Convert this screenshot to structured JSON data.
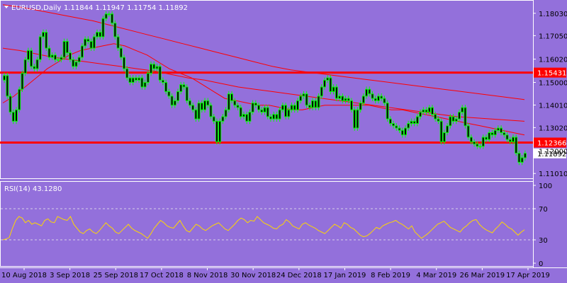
{
  "header": {
    "symbol_tf": "EURUSD,Daily",
    "ohlc": "1.11844 1.11947 1.11754 1.11892"
  },
  "colors": {
    "background": "#9370DB",
    "candle": "#00FF00",
    "ma": "#FF0000",
    "hline": "#FF0000",
    "rsi": "#FFD700",
    "frame": "#FFFFFF",
    "label_bg": "#FF0000",
    "price_box_bg": "#FFFFFF"
  },
  "price_axis": {
    "ticks": [
      "1.18030",
      "1.17050",
      "1.16020",
      "1.15000",
      "1.14010",
      "1.13020",
      "1.12000",
      "1.11010"
    ]
  },
  "h_levels": [
    {
      "value": 1.15431,
      "label": "1.15431"
    },
    {
      "value": 1.12366,
      "label": "1.12366"
    }
  ],
  "current_price": {
    "value": 1.11892,
    "label": "1.11892"
  },
  "rsi_panel": {
    "title": "RSI(14) 43.1280",
    "ticks": [
      "100",
      "70",
      "30",
      "0"
    ],
    "levels": [
      70,
      30
    ]
  },
  "time_axis": {
    "labels": [
      "10 Aug 2018",
      "3 Sep 2018",
      "25 Sep 2018",
      "17 Oct 2018",
      "8 Nov 2018",
      "30 Nov 2018",
      "24 Dec 2018",
      "17 Jan 2019",
      "8 Feb 2019",
      "4 Mar 2019",
      "26 Mar 2019",
      "17 Apr 2019"
    ]
  },
  "chart_data": {
    "type": "candlestick",
    "symbol": "EURUSD",
    "timeframe": "Daily",
    "ylim": [
      1.108,
      1.1855
    ],
    "candles_close": [
      1.153,
      1.144,
      1.137,
      1.133,
      1.138,
      1.147,
      1.154,
      1.16,
      1.164,
      1.157,
      1.156,
      1.16,
      1.17,
      1.172,
      1.165,
      1.161,
      1.162,
      1.16,
      1.16,
      1.161,
      1.168,
      1.163,
      1.16,
      1.157,
      1.159,
      1.161,
      1.166,
      1.169,
      1.168,
      1.165,
      1.17,
      1.172,
      1.17,
      1.178,
      1.18,
      1.18,
      1.176,
      1.17,
      1.165,
      1.161,
      1.156,
      1.152,
      1.15,
      1.152,
      1.151,
      1.152,
      1.148,
      1.15,
      1.154,
      1.158,
      1.156,
      1.157,
      1.151,
      1.15,
      1.146,
      1.144,
      1.14,
      1.142,
      1.146,
      1.149,
      1.148,
      1.142,
      1.14,
      1.138,
      1.134,
      1.141,
      1.138,
      1.142,
      1.14,
      1.135,
      1.133,
      1.124,
      1.133,
      1.135,
      1.138,
      1.145,
      1.142,
      1.14,
      1.139,
      1.135,
      1.136,
      1.133,
      1.137,
      1.141,
      1.14,
      1.138,
      1.137,
      1.139,
      1.135,
      1.134,
      1.136,
      1.134,
      1.138,
      1.14,
      1.135,
      1.138,
      1.14,
      1.138,
      1.142,
      1.144,
      1.145,
      1.14,
      1.139,
      1.142,
      1.139,
      1.144,
      1.148,
      1.151,
      1.152,
      1.146,
      1.148,
      1.143,
      1.144,
      1.142,
      1.143,
      1.142,
      1.138,
      1.13,
      1.138,
      1.141,
      1.144,
      1.147,
      1.145,
      1.143,
      1.142,
      1.144,
      1.143,
      1.141,
      1.134,
      1.132,
      1.131,
      1.13,
      1.129,
      1.127,
      1.13,
      1.132,
      1.133,
      1.132,
      1.135,
      1.137,
      1.138,
      1.137,
      1.139,
      1.136,
      1.134,
      1.133,
      1.124,
      1.128,
      1.131,
      1.135,
      1.133,
      1.134,
      1.137,
      1.139,
      1.131,
      1.126,
      1.124,
      1.123,
      1.122,
      1.122,
      1.126,
      1.125,
      1.128,
      1.127,
      1.129,
      1.13,
      1.128,
      1.127,
      1.125,
      1.124,
      1.126,
      1.119,
      1.115,
      1.117,
      1.119
    ],
    "ma_fast": [
      1.141,
      1.144,
      1.148,
      1.152,
      1.156,
      1.159,
      1.162,
      1.164,
      1.165,
      1.166,
      1.167,
      1.166,
      1.164,
      1.162,
      1.159,
      1.156,
      1.154,
      1.152,
      1.149,
      1.146,
      1.143,
      1.142,
      1.141,
      1.14,
      1.14,
      1.139,
      1.138,
      1.138,
      1.139,
      1.14,
      1.14,
      1.14,
      1.14,
      1.14,
      1.139,
      1.138,
      1.138,
      1.137,
      1.136,
      1.135,
      1.134,
      1.133,
      1.132,
      1.131,
      1.13,
      1.129,
      1.128,
      1.127
    ],
    "ma_slow": [
      1.165,
      1.164,
      1.1625,
      1.161,
      1.16,
      1.159,
      1.158,
      1.157,
      1.156,
      1.155,
      1.1535,
      1.152,
      1.151,
      1.1495,
      1.148,
      1.147,
      1.146,
      1.145,
      1.144,
      1.143,
      1.142,
      1.141,
      1.14,
      1.139,
      1.138,
      1.137,
      1.136,
      1.135,
      1.1345,
      1.134,
      1.1335,
      1.133
    ],
    "ma_long": [
      1.184,
      1.183,
      1.1815,
      1.18,
      1.1785,
      1.177,
      1.175,
      1.173,
      1.171,
      1.169,
      1.167,
      1.165,
      1.163,
      1.161,
      1.159,
      1.157,
      1.1555,
      1.1545,
      1.1535,
      1.1525,
      1.1515,
      1.1505,
      1.1495,
      1.1485,
      1.1475,
      1.1465,
      1.1455,
      1.1445,
      1.1435,
      1.1425
    ],
    "rsi_ylim": [
      0,
      100
    ],
    "rsi_values": [
      30,
      31,
      33,
      45,
      55,
      60,
      58,
      52,
      55,
      50,
      52,
      50,
      48,
      55,
      57,
      53,
      52,
      60,
      58,
      56,
      55,
      60,
      50,
      45,
      40,
      38,
      42,
      44,
      40,
      38,
      42,
      47,
      52,
      48,
      45,
      40,
      38,
      42,
      46,
      50,
      45,
      42,
      40,
      38,
      35,
      32,
      38,
      45,
      50,
      55,
      52,
      48,
      46,
      45,
      50,
      55,
      48,
      42,
      40,
      45,
      50,
      48,
      44,
      42,
      45,
      48,
      50,
      52,
      48,
      44,
      42,
      46,
      50,
      55,
      58,
      56,
      52,
      55,
      54,
      60,
      56,
      52,
      50,
      48,
      45,
      44,
      48,
      50,
      56,
      53,
      48,
      46,
      44,
      50,
      52,
      49,
      47,
      45,
      42,
      40,
      38,
      42,
      46,
      50,
      48,
      45,
      52,
      50,
      46,
      44,
      40,
      36,
      34,
      35,
      38,
      42,
      46,
      44,
      48,
      50,
      52,
      53,
      55,
      52,
      50,
      47,
      44,
      48,
      40,
      36,
      32,
      35,
      38,
      42,
      46,
      50,
      52,
      54,
      50,
      46,
      44,
      42,
      40,
      45,
      48,
      52,
      55,
      56,
      50,
      46,
      43,
      41,
      39,
      44,
      48,
      53,
      50,
      46,
      44,
      40,
      36,
      40,
      43
    ]
  }
}
